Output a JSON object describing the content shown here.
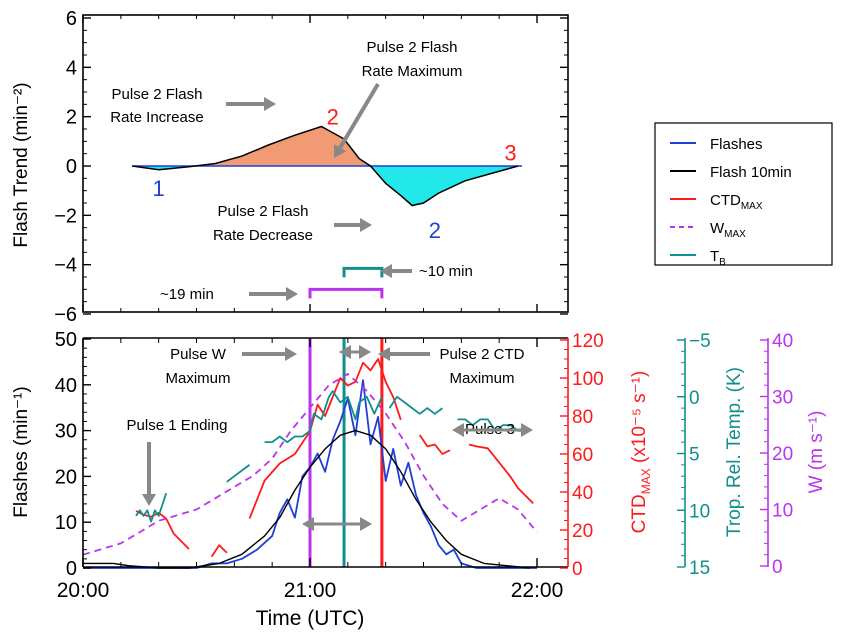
{
  "colors": {
    "flashes": "#1f3fd6",
    "flash10": "#000000",
    "ctd": "#ff1a1a",
    "wmax": "#bb33ee",
    "tb": "#108f8f",
    "gray": "#888888",
    "pos_fill": "#f29a74",
    "neg_fill": "#22e8ea"
  },
  "chart_data": [
    {
      "type": "area",
      "ylabel": "Flash Trend (min⁻²)",
      "ylim": [
        -6.3,
        6.3
      ],
      "yticks": [
        "6",
        "4",
        "2",
        "0",
        "−2",
        "−4",
        "−6"
      ],
      "ytick_values": [
        6,
        4,
        2,
        0,
        -2,
        -4,
        -6
      ],
      "x_time": [
        "20:13",
        "20:20",
        "20:28",
        "20:35",
        "20:42",
        "20:49",
        "20:56",
        "21:03",
        "21:09",
        "21:13",
        "21:16",
        "21:20",
        "21:24",
        "21:27",
        "21:30",
        "21:34",
        "21:41",
        "21:48",
        "21:55"
      ],
      "trend": [
        0,
        -0.15,
        -0.03,
        0.1,
        0.4,
        0.85,
        1.25,
        1.6,
        1.1,
        0.3,
        0,
        -0.7,
        -1.2,
        -1.6,
        -1.5,
        -1.1,
        -0.6,
        -0.3,
        0
      ],
      "pulse_labels": [
        {
          "text": "1",
          "time": "20:20",
          "y": -0.9,
          "color": "flashes"
        },
        {
          "text": "2",
          "time": "21:06",
          "y": 2.0,
          "color": "ctd"
        },
        {
          "text": "3",
          "time": "21:53",
          "y": 0.55,
          "color": "ctd"
        },
        {
          "text": "2",
          "time": "21:33",
          "y": -2.6,
          "color": "flashes"
        }
      ],
      "annotations": {
        "increase": [
          "Pulse 2 Flash",
          "Rate Increase"
        ],
        "maximum": [
          "Pulse 2 Flash",
          "Rate Maximum"
        ],
        "decrease": [
          "Pulse 2 Flash",
          "Rate Decrease"
        ],
        "span19": "~19 min",
        "span10": "~10 min"
      },
      "brackets": [
        {
          "label": "span19",
          "start": "21:00",
          "end": "21:19",
          "y": -5,
          "color": "wmax"
        },
        {
          "label": "span10",
          "start": "21:09",
          "end": "21:19",
          "y": -4.15,
          "color": "tb"
        }
      ]
    },
    {
      "type": "line",
      "xlabel": "Time (UTC)",
      "xticks": [
        "20:00",
        "21:00",
        "22:00"
      ],
      "xtick_values": [
        "20:00",
        "21:00",
        "22:00"
      ],
      "axes": {
        "flashes": {
          "label": "Flashes (min⁻¹)",
          "range": [
            0,
            50
          ],
          "ticks": [
            0,
            10,
            20,
            30,
            40,
            50
          ]
        },
        "ctd": {
          "label": "CTD",
          "label_sub": "MAX",
          "label_rest": " (x10⁻⁵ s⁻¹)",
          "range": [
            0,
            120
          ],
          "ticks": [
            0,
            20,
            40,
            60,
            80,
            100,
            120
          ]
        },
        "tb": {
          "label": "Trop. Rel. Temp. (K)",
          "range": [
            15,
            -5
          ],
          "ticks": [
            "−5",
            "0",
            "5",
            "10",
            "15"
          ],
          "tick_values": [
            -5,
            0,
            5,
            10,
            15
          ]
        },
        "w": {
          "label": "W (m s⁻¹)",
          "range": [
            0,
            40
          ],
          "ticks": [
            0,
            10,
            20,
            30,
            40
          ]
        }
      },
      "series": [
        {
          "name": "Flashes",
          "key": "flashes",
          "axis": "flashes",
          "dash": false,
          "x": [
            "20:00",
            "20:10",
            "20:12",
            "20:14",
            "20:18",
            "20:22",
            "20:26",
            "20:30",
            "20:34",
            "20:38",
            "20:42",
            "20:46",
            "20:50",
            "20:52",
            "20:54",
            "20:56",
            "20:58",
            "21:00",
            "21:02",
            "21:04",
            "21:06",
            "21:08",
            "21:10",
            "21:12",
            "21:14",
            "21:16",
            "21:18",
            "21:20",
            "21:22",
            "21:24",
            "21:26",
            "21:28",
            "21:30",
            "21:32",
            "21:34",
            "21:36",
            "21:38",
            "21:40",
            "21:44",
            "21:48",
            "21:52",
            "21:56",
            "22:00"
          ],
          "y": [
            0,
            0,
            0,
            0,
            0,
            0,
            0,
            0,
            1,
            1,
            2,
            4,
            7,
            12,
            15,
            11,
            20,
            22,
            25,
            21,
            28,
            32,
            37,
            29,
            41,
            27,
            33,
            19,
            26,
            18,
            23,
            16,
            12,
            9,
            5,
            3,
            4,
            1,
            0,
            0,
            0,
            0,
            0
          ]
        },
        {
          "name": "Flash 10min",
          "key": "flash10",
          "axis": "flashes",
          "dash": false,
          "x": [
            "20:00",
            "20:08",
            "20:12",
            "20:20",
            "20:28",
            "20:36",
            "20:42",
            "20:48",
            "20:52",
            "20:56",
            "21:00",
            "21:04",
            "21:08",
            "21:12",
            "21:16",
            "21:20",
            "21:24",
            "21:28",
            "21:32",
            "21:36",
            "21:40",
            "21:46",
            "21:52",
            "21:58"
          ],
          "y": [
            1,
            1,
            0.5,
            0,
            0,
            1,
            3,
            7,
            11,
            17,
            22,
            26,
            29,
            30,
            29,
            26,
            21,
            15,
            10,
            6,
            3,
            1,
            0.5,
            0
          ]
        },
        {
          "name": "CTD_MAX",
          "key": "ctd",
          "axis": "ctd",
          "dash": false,
          "x": [
            "20:14",
            "20:16",
            "20:18",
            "20:20",
            "20:22",
            "20:24",
            "20:26",
            "20:28",
            "null",
            "20:34",
            "20:36",
            "20:38",
            "null",
            "20:44",
            "20:48",
            "20:52",
            "20:56",
            "21:00",
            "21:02",
            "21:04",
            "21:06",
            "21:08",
            "21:10",
            "21:12",
            "21:14",
            "21:16",
            "21:18",
            "21:20",
            "21:22",
            "21:24",
            "null",
            "21:29",
            "21:31",
            "21:33",
            "21:35",
            "21:37",
            "null",
            "21:42",
            "21:44",
            "21:47",
            "21:49",
            "21:51",
            "21:53",
            "21:55",
            "21:57",
            "21:59"
          ],
          "y": [
            30,
            28,
            27,
            29,
            26,
            18,
            14,
            10,
            null,
            6,
            12,
            8,
            null,
            26,
            46,
            55,
            60,
            72,
            86,
            80,
            90,
            100,
            96,
            98,
            108,
            104,
            110,
            98,
            90,
            78,
            null,
            70,
            64,
            65,
            60,
            62,
            null,
            65,
            64,
            63,
            58,
            53,
            48,
            42,
            38,
            34
          ]
        },
        {
          "name": "W_MAX",
          "key": "wmax",
          "axis": "w",
          "dash": true,
          "x": [
            "20:00",
            "20:05",
            "20:10",
            "20:15",
            "20:20",
            "20:25",
            "20:30",
            "20:35",
            "20:40",
            "20:45",
            "20:50",
            "20:55",
            "21:00",
            "21:05",
            "21:10",
            "21:15",
            "21:20",
            "21:25",
            "21:30",
            "21:35",
            "21:40",
            "21:45",
            "21:50",
            "21:55",
            "22:00"
          ],
          "y": [
            2,
            3,
            4,
            6,
            8,
            9,
            10,
            12,
            14,
            16,
            19,
            24,
            28,
            32,
            34,
            31,
            27,
            22,
            16,
            11,
            8,
            10,
            12,
            10,
            6
          ]
        },
        {
          "name": "T_B",
          "key": "tb",
          "axis": "tb",
          "dash": false,
          "x": [
            "20:14",
            "20:15",
            "20:16",
            "20:17",
            "20:18",
            "20:19",
            "20:20",
            "20:21",
            "20:22",
            "null",
            "20:38",
            "20:40",
            "20:42",
            "20:44",
            "null",
            "20:48",
            "20:50",
            "20:52",
            "20:54",
            "20:56",
            "20:58",
            "21:00",
            "21:01",
            "21:03",
            "21:05",
            "21:06",
            "21:08",
            "21:10",
            "21:12",
            "21:13",
            "21:15",
            "21:17",
            "21:19",
            "null",
            "21:21",
            "21:23",
            "21:25",
            "21:27",
            "21:29",
            "21:31",
            "21:33",
            "21:35",
            "null",
            "21:39",
            "21:41",
            "21:43",
            "21:45",
            "21:47",
            "21:49",
            "21:51",
            "21:53",
            "21:55",
            "21:57"
          ],
          "y": [
            10.5,
            10,
            10.5,
            10,
            11,
            10,
            10.5,
            9.5,
            8.5,
            null,
            7.5,
            7,
            6.5,
            6,
            null,
            4,
            4,
            3.5,
            4,
            3.5,
            3.5,
            3,
            1.5,
            2,
            0,
            -0.5,
            0.5,
            0,
            2,
            0.5,
            0,
            1.5,
            0,
            null,
            1,
            0,
            0.5,
            1,
            1.5,
            1,
            1.5,
            1,
            null,
            2,
            2,
            2.5,
            2,
            2,
            3,
            2.5,
            2.5,
            3,
            3
          ]
        }
      ],
      "vlines": [
        {
          "time": "21:00",
          "color": "wmax"
        },
        {
          "time": "21:09",
          "color": "tb"
        },
        {
          "time": "21:19",
          "color": "ctd"
        }
      ],
      "annotations": {
        "pulse_w": [
          "Pulse W",
          "Maximum"
        ],
        "pulse2ctd": [
          "Pulse 2 CTD",
          "Maximum"
        ],
        "pulse1": "Pulse 1 Ending",
        "pulse3": "Pulse 3"
      },
      "legend": {
        "position": "right",
        "entries": [
          {
            "text": "Flashes",
            "key": "flashes",
            "sub": "",
            "dash": false
          },
          {
            "text": "Flash 10min",
            "key": "flash10",
            "sub": "",
            "dash": false
          },
          {
            "text": "CTD",
            "key": "ctd",
            "sub": "MAX",
            "dash": false
          },
          {
            "text": "W",
            "key": "wmax",
            "sub": "MAX",
            "dash": true
          },
          {
            "text": "T",
            "key": "tb",
            "sub": "B",
            "dash": false
          }
        ]
      }
    }
  ]
}
